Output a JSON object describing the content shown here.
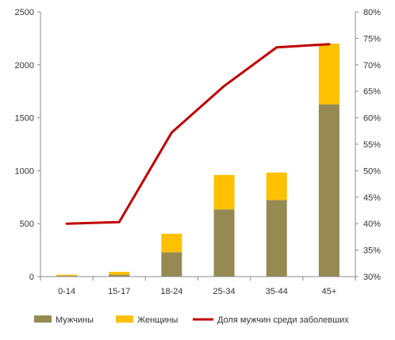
{
  "chart_data": {
    "type": "bar",
    "stacked": true,
    "title": "",
    "xlabel": "",
    "ylabel": "",
    "categories": [
      "0-14",
      "15-17",
      "18-24",
      "25-34",
      "35-44",
      "45+"
    ],
    "series": [
      {
        "name": "Мужчины",
        "values": [
          7,
          18,
          230,
          635,
          723,
          1627
        ],
        "color": "#968a52",
        "axis": "left"
      },
      {
        "name": "Женщины",
        "values": [
          11,
          27,
          175,
          325,
          260,
          573
        ],
        "color": "#ffc000",
        "axis": "left"
      }
    ],
    "line_series": {
      "name": "Доля мужчин среди заболевших",
      "values": [
        40.0,
        40.3,
        57.2,
        66.0,
        73.3,
        73.9
      ],
      "color": "#c00000",
      "axis": "right",
      "unit": "%"
    },
    "ylim": [
      0,
      2500
    ],
    "y_ticks": [
      "0",
      "500",
      "1000",
      "1500",
      "2000",
      "2500"
    ],
    "y2lim": [
      30,
      80
    ],
    "y2_ticks": [
      "30%",
      "35%",
      "40%",
      "45%",
      "50%",
      "55%",
      "60%",
      "65%",
      "70%",
      "75%",
      "80%"
    ],
    "grid": false,
    "legend_position": "bottom"
  }
}
